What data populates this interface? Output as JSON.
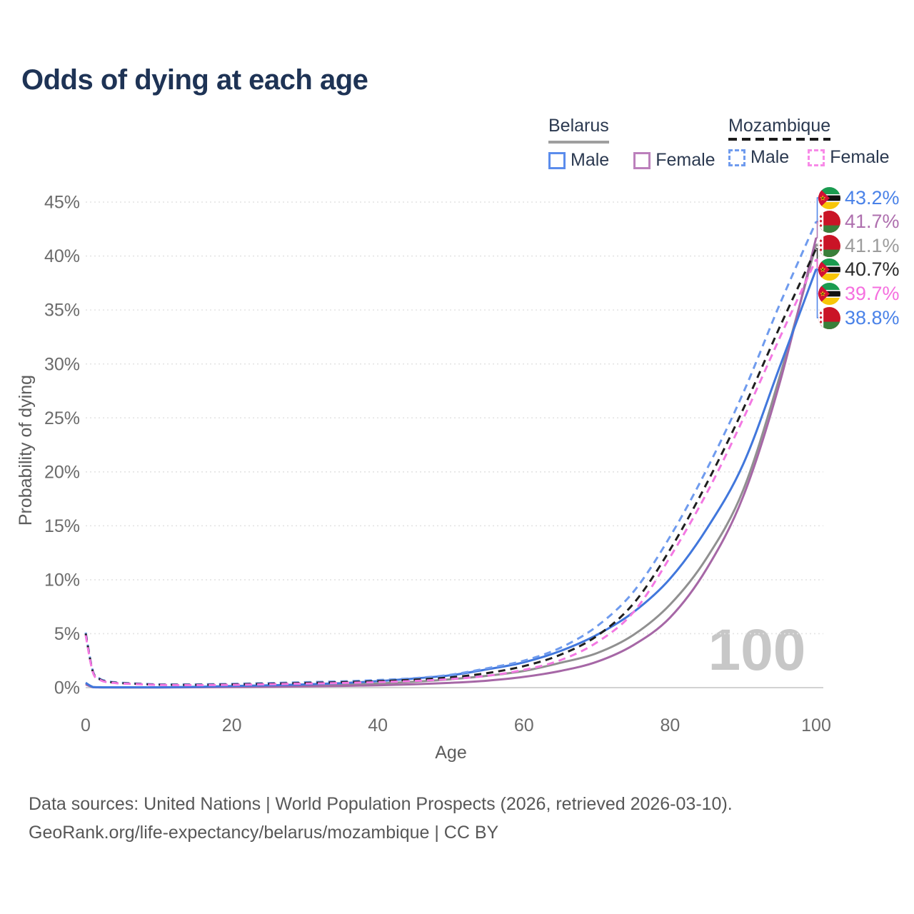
{
  "title": "Odds of dying at each age",
  "watermark": "100",
  "legend": {
    "belarus": {
      "name": "Belarus",
      "male": "Male",
      "female": "Female"
    },
    "mozambique": {
      "name": "Mozambique",
      "male": "Male",
      "female": "Female"
    }
  },
  "axes": {
    "y_title": "Probability of dying",
    "x_title": "Age",
    "y_ticks": [
      "0%",
      "5%",
      "10%",
      "15%",
      "20%",
      "25%",
      "30%",
      "35%",
      "40%",
      "45%"
    ],
    "x_ticks": [
      "0",
      "20",
      "40",
      "60",
      "80",
      "100"
    ]
  },
  "footer": {
    "line1": "Data sources: United Nations | World Population Prospects (2026, retrieved 2026-03-10).",
    "line2": "GeoRank.org/life-expectancy/belarus/mozambique | CC BY"
  },
  "end_labels": [
    {
      "value": "43.2%",
      "series": "Mozambique male",
      "flag": "mozambique",
      "color": "#4a82e8"
    },
    {
      "value": "41.7%",
      "series": "Belarus female",
      "flag": "belarus",
      "color": "#ae6fae"
    },
    {
      "value": "41.1%",
      "series": "Belarus both sexes",
      "flag": "belarus",
      "color": "#9c9c9c"
    },
    {
      "value": "40.7%",
      "series": "Mozambique both sexes",
      "flag": "mozambique",
      "color": "#2b2b2b"
    },
    {
      "value": "39.7%",
      "series": "Mozambique female",
      "flag": "mozambique",
      "color": "#f56fdf"
    },
    {
      "value": "38.8%",
      "series": "Belarus male",
      "flag": "belarus",
      "color": "#4a82e8"
    }
  ],
  "chart_data": {
    "type": "line",
    "title": "Odds of dying at each age",
    "xlabel": "Age",
    "ylabel": "Probability of dying",
    "xlim": [
      0,
      100
    ],
    "ylim": [
      0,
      45
    ],
    "y_unit": "%",
    "grid": "horizontal-dotted",
    "legend_position": "top-right",
    "x": [
      0,
      1,
      2,
      3,
      4,
      5,
      10,
      15,
      20,
      25,
      30,
      35,
      40,
      45,
      50,
      55,
      60,
      65,
      70,
      75,
      80,
      85,
      90,
      95,
      100
    ],
    "series": [
      {
        "name": "Belarus both sexes",
        "color": "#909090",
        "dash": false,
        "values": [
          0.4,
          0.05,
          0.03,
          0.025,
          0.02,
          0.02,
          0.02,
          0.05,
          0.1,
          0.14,
          0.19,
          0.26,
          0.38,
          0.54,
          0.78,
          1.1,
          1.55,
          2.3,
          3.2,
          4.9,
          7.7,
          12.0,
          18.3,
          28.8,
          41.1
        ]
      },
      {
        "name": "Belarus female",
        "color": "#a667a6",
        "dash": false,
        "values": [
          0.3,
          0.04,
          0.02,
          0.02,
          0.02,
          0.02,
          0.015,
          0.03,
          0.06,
          0.08,
          0.11,
          0.16,
          0.22,
          0.32,
          0.45,
          0.65,
          1.0,
          1.55,
          2.4,
          3.95,
          6.5,
          11.0,
          17.7,
          28.2,
          41.7
        ]
      },
      {
        "name": "Belarus male",
        "color": "#4177dc",
        "dash": false,
        "values": [
          0.45,
          0.06,
          0.04,
          0.03,
          0.03,
          0.03,
          0.03,
          0.07,
          0.15,
          0.22,
          0.3,
          0.42,
          0.6,
          0.85,
          1.15,
          1.7,
          2.35,
          3.4,
          4.9,
          7.0,
          10.1,
          14.7,
          20.7,
          29.7,
          38.8
        ]
      },
      {
        "name": "Mozambique male",
        "color": "#6f9bee",
        "dash": true,
        "values": [
          5.1,
          1.5,
          0.8,
          0.6,
          0.5,
          0.45,
          0.3,
          0.3,
          0.35,
          0.42,
          0.5,
          0.58,
          0.7,
          0.88,
          1.2,
          1.8,
          2.5,
          3.7,
          5.7,
          8.9,
          14.0,
          20.2,
          27.3,
          35.5,
          43.2
        ]
      },
      {
        "name": "Mozambique both sexes",
        "color": "#1f1f1f",
        "dash": true,
        "values": [
          5.0,
          1.45,
          0.75,
          0.55,
          0.46,
          0.41,
          0.27,
          0.26,
          0.3,
          0.36,
          0.43,
          0.5,
          0.6,
          0.74,
          0.95,
          1.35,
          2.0,
          3.05,
          4.8,
          7.8,
          12.8,
          18.9,
          25.8,
          33.4,
          40.7
        ]
      },
      {
        "name": "Mozambique female",
        "color": "#f378e2",
        "dash": true,
        "values": [
          4.85,
          1.4,
          0.7,
          0.5,
          0.43,
          0.38,
          0.25,
          0.23,
          0.26,
          0.31,
          0.37,
          0.43,
          0.51,
          0.62,
          0.8,
          1.1,
          1.65,
          2.55,
          4.2,
          7.0,
          12.1,
          18.0,
          24.9,
          32.4,
          39.7
        ]
      }
    ]
  }
}
